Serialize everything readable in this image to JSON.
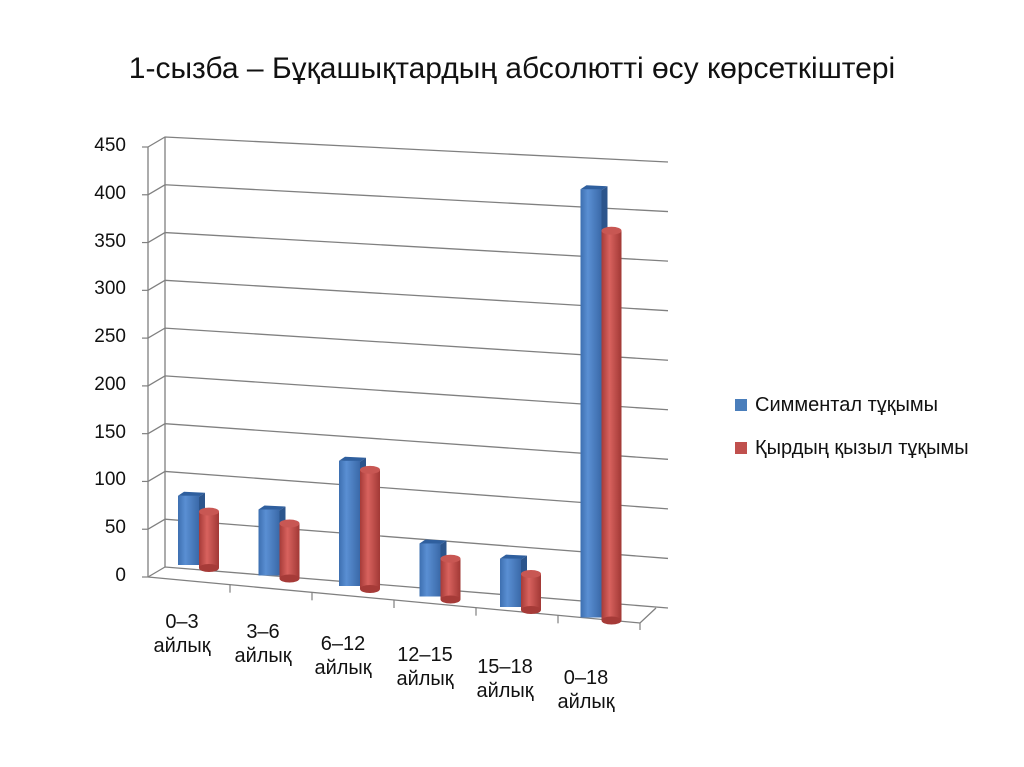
{
  "title": "1-сызба – Бұқашықтардың абсолютті өсу көрсеткіштері",
  "legend": [
    {
      "label": "Симментал тұқымы",
      "color": "#4a7ebb"
    },
    {
      "label": "Қырдың қызыл тұқымы",
      "color": "#c0504d"
    }
  ],
  "y_ticks": [
    "450",
    "400",
    "350",
    "300",
    "250",
    "200",
    "150",
    "100",
    "50",
    "0"
  ],
  "x_labels": [
    {
      "range": "0–3",
      "unit": "айлық"
    },
    {
      "range": "3–6",
      "unit": "айлық"
    },
    {
      "range": "6–12",
      "unit": "айлық"
    },
    {
      "range": "12–15",
      "unit": "айлық"
    },
    {
      "range": "15–18",
      "unit": "айлық"
    },
    {
      "range": "0–18",
      "unit": "айлық"
    }
  ],
  "chart_data": {
    "type": "bar",
    "style": "3d clustered (blue boxes, red cylinders)",
    "title": "1-сызба – Бұқашықтардың абсолютті өсу көрсеткіштері",
    "categories": [
      "0–3 айлық",
      "3–6 айлық",
      "6–12 айлық",
      "12–15 айлық",
      "15–18 айлық",
      "0–18 айлық"
    ],
    "series": [
      {
        "name": "Симментал тұқымы",
        "color": "#4a7ebb",
        "values": [
          70,
          66,
          124,
          52,
          47,
          412
        ]
      },
      {
        "name": "Қырдың қызыл тұқымы",
        "color": "#c0504d",
        "values": [
          57,
          55,
          118,
          40,
          35,
          375
        ]
      }
    ],
    "xlabel": "",
    "ylabel": "",
    "ylim": [
      0,
      450
    ],
    "yticks": [
      0,
      50,
      100,
      150,
      200,
      250,
      300,
      350,
      400,
      450
    ],
    "grid": true,
    "legend_position": "right"
  }
}
